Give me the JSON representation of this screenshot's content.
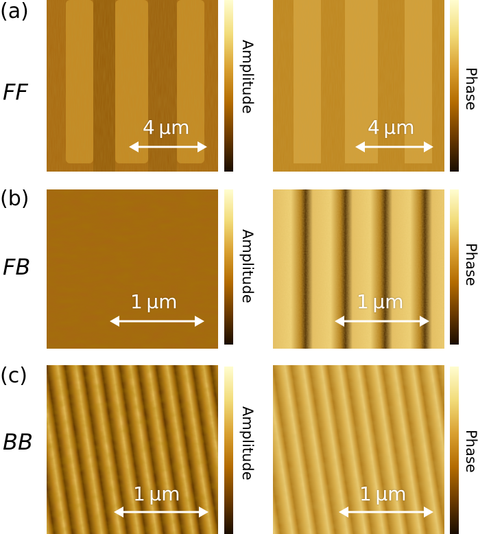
{
  "figure": {
    "panels": [
      {
        "letter": "(a)",
        "mode": "FF",
        "scale_bar": "4 μm",
        "left": {
          "colorbar_label": "Amplitude"
        },
        "right": {
          "colorbar_label": "Phase"
        }
      },
      {
        "letter": "(b)",
        "mode": "FB",
        "scale_bar": "1 μm",
        "left": {
          "colorbar_label": "Amplitude"
        },
        "right": {
          "colorbar_label": "Phase"
        }
      },
      {
        "letter": "(c)",
        "mode": "BB",
        "scale_bar": "1 μm",
        "left": {
          "colorbar_label": "Amplitude"
        },
        "right": {
          "colorbar_label": "Phase"
        }
      }
    ],
    "colormap": [
      "#1a0d00",
      "#6b3a00",
      "#b36b00",
      "#d9a030",
      "#f2dc7a",
      "#fffdd0"
    ]
  }
}
